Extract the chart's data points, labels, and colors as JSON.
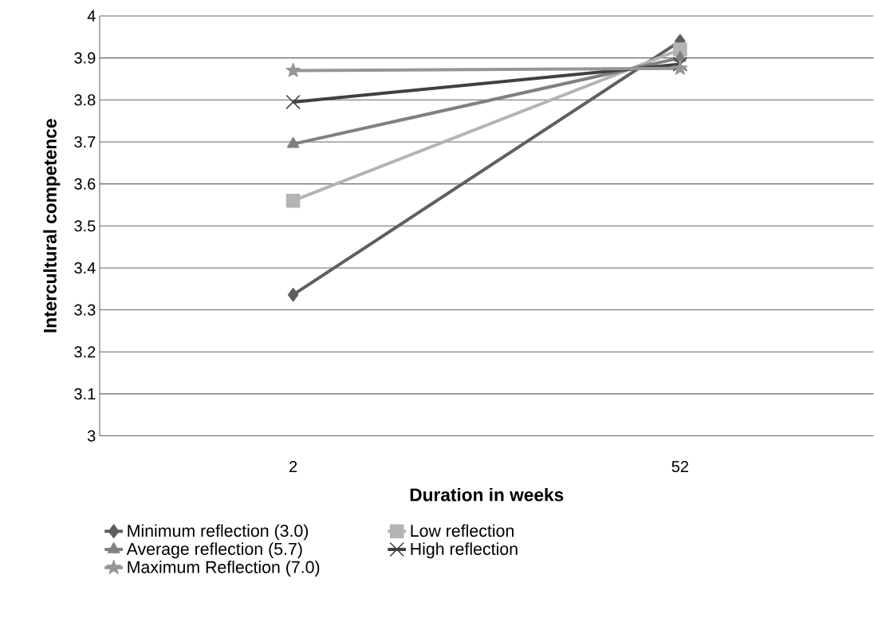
{
  "chart_data": {
    "type": "line",
    "xlabel": "Duration in weeks",
    "ylabel": "Intercultural competence",
    "categories": [
      "2",
      "52"
    ],
    "series": [
      {
        "name": "Minimum reflection (3.0)",
        "color": "#5f5f5f",
        "marker": "diamond",
        "values": [
          3.336,
          3.94
        ]
      },
      {
        "name": "Low reflection",
        "color": "#b4b4b4",
        "marker": "square",
        "values": [
          3.56,
          3.92
        ]
      },
      {
        "name": "Average reflection (5.7)",
        "color": "#808080",
        "marker": "triangle",
        "values": [
          3.695,
          3.9
        ]
      },
      {
        "name": "High reflection",
        "color": "#404040",
        "marker": "cross",
        "values": [
          3.795,
          3.885
        ]
      },
      {
        "name": "Maximum Reflection (7.0)",
        "color": "#969696",
        "marker": "star",
        "values": [
          3.87,
          3.875
        ]
      }
    ],
    "ylim": [
      3,
      4
    ],
    "yticks": [
      3,
      3.1,
      3.2,
      3.3,
      3.4,
      3.5,
      3.6,
      3.7,
      3.8,
      3.9,
      4
    ],
    "grid": "y",
    "legend": "bottom",
    "line_style": "solid"
  }
}
